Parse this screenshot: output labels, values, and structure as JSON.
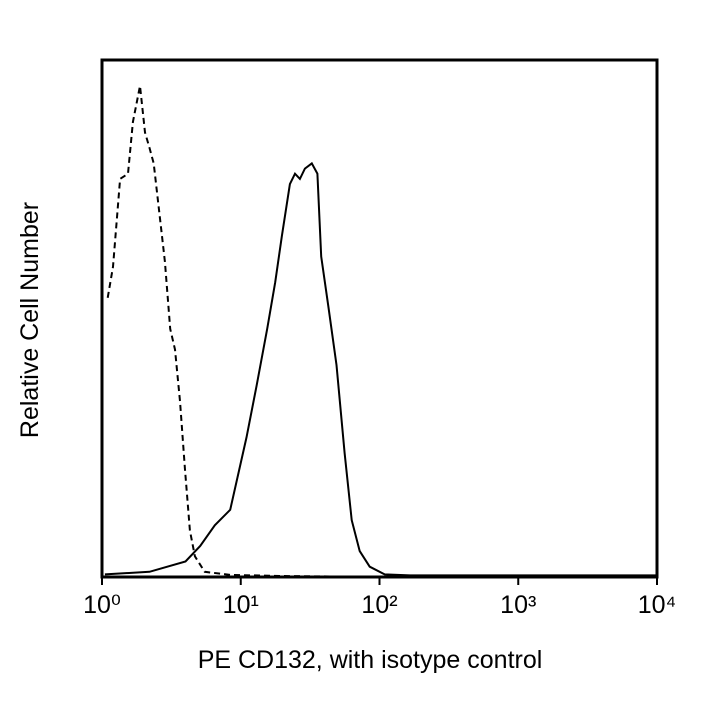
{
  "chart_data": {
    "type": "line",
    "xlabel": "PE CD132, with isotype control",
    "ylabel": "Relative Cell Number",
    "xscale": "log",
    "xlim": [
      1,
      10000
    ],
    "xticks": [
      {
        "value": 1,
        "label": "10⁰"
      },
      {
        "value": 10,
        "label": "10¹"
      },
      {
        "value": 100,
        "label": "10²"
      },
      {
        "value": 1000,
        "label": "10³"
      },
      {
        "value": 10000,
        "label": "10⁴"
      }
    ],
    "ylim": [
      0,
      100
    ],
    "series": [
      {
        "color": "#000000",
        "line_style": "dashed",
        "x": [
          1.1,
          1.2,
          1.35,
          1.54,
          1.67,
          1.88,
          2.04,
          2.2,
          2.36,
          2.6,
          2.84,
          3.1,
          3.36,
          3.65,
          3.96,
          4.3,
          4.67,
          5.5,
          8.4,
          20,
          100
        ],
        "values": [
          54,
          60,
          77,
          78,
          88,
          95,
          86,
          83,
          80,
          70,
          61,
          48,
          44,
          34,
          21,
          9,
          4,
          1,
          0.4,
          0.2,
          0
        ]
      },
      {
        "color": "#000000",
        "line_style": "solid",
        "x": [
          1.05,
          2.2,
          4,
          5.1,
          6.5,
          8.4,
          11,
          13,
          15.5,
          17.7,
          19.8,
          22.6,
          24.6,
          26.7,
          29,
          32.5,
          35.7,
          38,
          43,
          49,
          56,
          63,
          72,
          85,
          109,
          166,
          445,
          6000,
          10000
        ],
        "values": [
          0.5,
          1,
          3,
          6,
          10,
          13,
          27,
          37,
          48,
          57,
          66,
          76,
          78,
          77,
          79,
          80,
          78,
          62,
          52,
          41,
          24,
          11,
          5,
          2,
          0.5,
          0.3,
          0.3,
          0.3,
          0.3
        ]
      }
    ]
  }
}
